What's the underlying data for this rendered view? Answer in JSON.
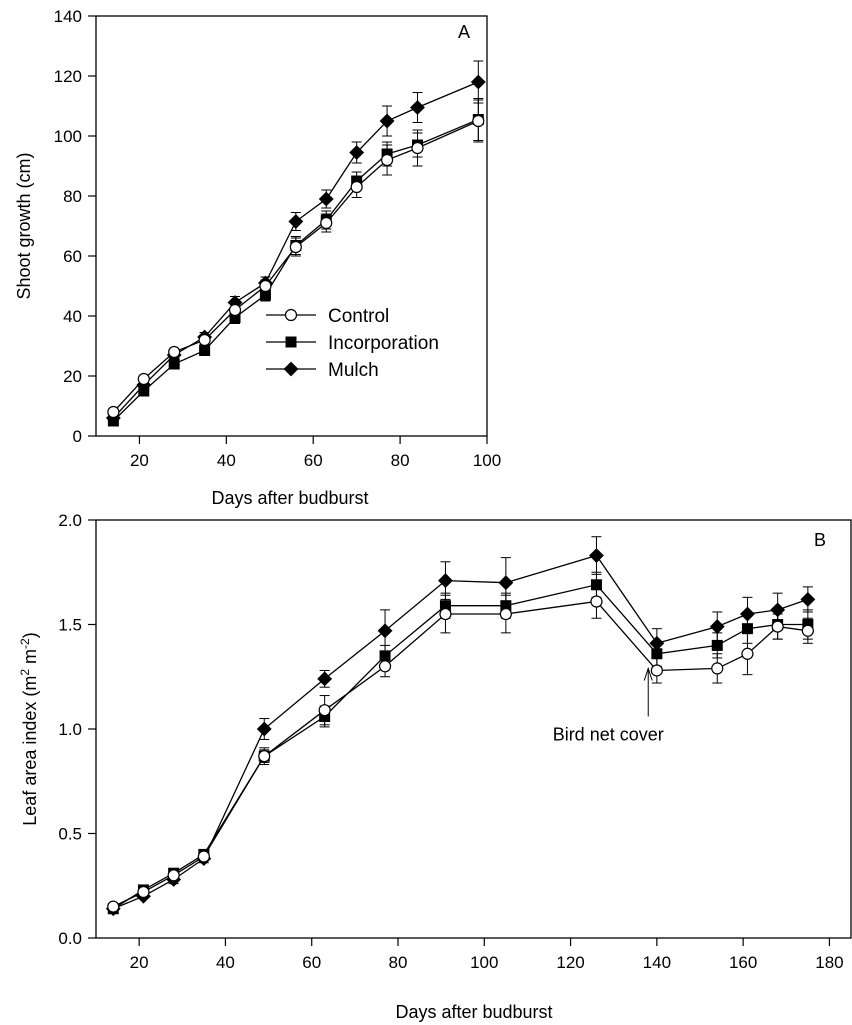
{
  "chart_data": [
    {
      "type": "line",
      "panel_label": "A",
      "xlabel": "Days after budburst",
      "ylabel": "Shoot growth (cm)",
      "xlim": [
        10,
        100
      ],
      "ylim": [
        0,
        140
      ],
      "xticks": [
        20,
        40,
        60,
        80,
        100
      ],
      "yticks": [
        0,
        20,
        40,
        60,
        80,
        100,
        120,
        140
      ],
      "grid": false,
      "legend": "center-right",
      "series": [
        {
          "name": "Control",
          "marker": "open-circle",
          "x": [
            14,
            21,
            28,
            35,
            42,
            49,
            56,
            63,
            70,
            77,
            84,
            98
          ],
          "y": [
            8,
            19,
            28,
            32,
            42,
            50,
            63,
            71,
            83,
            92,
            96,
            105
          ],
          "err": [
            1,
            1,
            1,
            1.5,
            2,
            2,
            3,
            3,
            3.5,
            5,
            6,
            7
          ]
        },
        {
          "name": "Incorporation",
          "marker": "filled-square",
          "x": [
            14,
            21,
            28,
            35,
            42,
            49,
            56,
            63,
            70,
            77,
            84,
            98
          ],
          "y": [
            5,
            15,
            24,
            28.5,
            39.5,
            47,
            63.5,
            72,
            85,
            94,
            97,
            105.5
          ],
          "err": [
            1,
            1.5,
            1,
            1.5,
            2,
            2,
            3,
            3,
            3,
            4,
            4,
            7
          ]
        },
        {
          "name": "Mulch",
          "marker": "filled-diamond",
          "x": [
            14,
            21,
            28,
            35,
            42,
            49,
            56,
            63,
            70,
            77,
            84,
            98
          ],
          "y": [
            6,
            17,
            27,
            33,
            44.5,
            51,
            71.5,
            79,
            94.5,
            105,
            109.5,
            118
          ],
          "err": [
            1,
            1,
            1,
            1.5,
            2,
            2,
            3,
            3,
            3.5,
            5,
            5,
            7
          ]
        }
      ]
    },
    {
      "type": "line",
      "panel_label": "B",
      "xlabel": "Days after budburst",
      "ylabel_prefix": "Leaf area index (m",
      "ylabel_sup1": "2",
      "ylabel_mid": " m",
      "ylabel_sup2": "-2",
      "ylabel_suffix": ")",
      "xlim": [
        10,
        185
      ],
      "ylim": [
        0,
        2.0
      ],
      "xticks": [
        20,
        40,
        60,
        80,
        100,
        120,
        140,
        160,
        180
      ],
      "yticks": [
        0.0,
        0.5,
        1.0,
        1.5,
        2.0
      ],
      "ytick_labels": [
        "0.0",
        "0.5",
        "1.0",
        "1.5",
        "2.0"
      ],
      "grid": false,
      "annotations": [
        {
          "text": "Bird net cover",
          "x": 138,
          "y": 1.28
        }
      ],
      "series": [
        {
          "name": "Control",
          "marker": "open-circle",
          "x": [
            14,
            21,
            28,
            35,
            49,
            63,
            77,
            91,
            105,
            126,
            140,
            154,
            161,
            168,
            175
          ],
          "y": [
            0.15,
            0.22,
            0.3,
            0.39,
            0.87,
            1.09,
            1.3,
            1.55,
            1.55,
            1.61,
            1.28,
            1.29,
            1.36,
            1.49,
            1.47
          ],
          "err": [
            0.01,
            0.01,
            0.02,
            0.02,
            0.03,
            0.07,
            0.05,
            0.09,
            0.09,
            0.08,
            0.06,
            0.07,
            0.1,
            0.06,
            0.06
          ]
        },
        {
          "name": "Incorporation",
          "marker": "filled-square",
          "x": [
            14,
            21,
            28,
            35,
            49,
            63,
            77,
            91,
            105,
            126,
            140,
            154,
            161,
            168,
            175
          ],
          "y": [
            0.14,
            0.23,
            0.31,
            0.4,
            0.87,
            1.06,
            1.35,
            1.59,
            1.59,
            1.69,
            1.36,
            1.4,
            1.48,
            1.5,
            1.5
          ],
          "err": [
            0.01,
            0.01,
            0.02,
            0.02,
            0.04,
            0.05,
            0.05,
            0.06,
            0.06,
            0.06,
            0.06,
            0.06,
            0.07,
            0.07,
            0.07
          ]
        },
        {
          "name": "Mulch",
          "marker": "filled-diamond",
          "x": [
            14,
            21,
            28,
            35,
            49,
            63,
            77,
            91,
            105,
            126,
            140,
            154,
            161,
            168,
            175
          ],
          "y": [
            0.14,
            0.2,
            0.28,
            0.38,
            1.0,
            1.24,
            1.47,
            1.71,
            1.7,
            1.83,
            1.41,
            1.49,
            1.55,
            1.57,
            1.62
          ],
          "err": [
            0.01,
            0.01,
            0.02,
            0.02,
            0.05,
            0.04,
            0.1,
            0.09,
            0.12,
            0.09,
            0.07,
            0.07,
            0.08,
            0.08,
            0.06
          ]
        }
      ]
    }
  ]
}
